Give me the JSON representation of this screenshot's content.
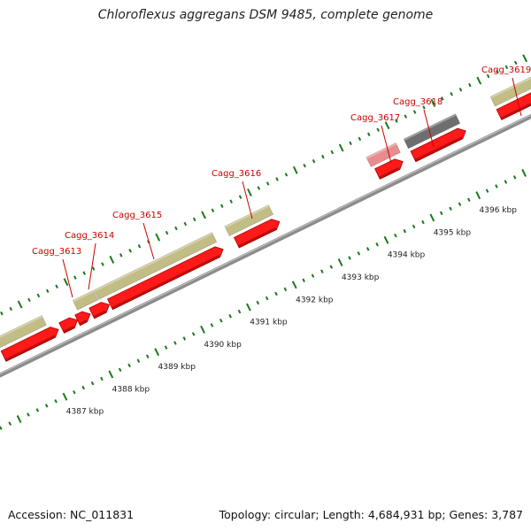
{
  "title": "Chloroflexus aggregans DSM 9485, complete genome",
  "footer": {
    "accession": "Accession: NC_011831",
    "topology": "Topology: circular; Length: 4,684,931 bp; Genes: 3,787"
  },
  "colors": {
    "backbone": "#8c8c8c",
    "cds": "#ff1a1a",
    "cds_dark": "#b00000",
    "gene": "#c2bd84",
    "gene_pink": "#e88d8d",
    "gene_gray": "#6e6e6e",
    "tick": "#1a7a1a",
    "label": "#cc0000"
  },
  "scale": {
    "unit": "kbp",
    "ticks": [
      {
        "pos": 4387,
        "label": "4387 kbp"
      },
      {
        "pos": 4388,
        "label": "4388 kbp"
      },
      {
        "pos": 4389,
        "label": "4389 kbp"
      },
      {
        "pos": 4390,
        "label": "4390 kbp"
      },
      {
        "pos": 4391,
        "label": "4391 kbp"
      },
      {
        "pos": 4392,
        "label": "4392 kbp"
      },
      {
        "pos": 4393,
        "label": "4393 kbp"
      },
      {
        "pos": 4394,
        "label": "4394 kbp"
      },
      {
        "pos": 4395,
        "label": "4395 kbp"
      },
      {
        "pos": 4396,
        "label": "4396 kbp"
      }
    ]
  },
  "gene_labels": [
    {
      "name": "Cagg_3613"
    },
    {
      "name": "Cagg_3614"
    },
    {
      "name": "Cagg_3615"
    },
    {
      "name": "Cagg_3616"
    },
    {
      "name": "Cagg_3617"
    },
    {
      "name": "Cagg_3618"
    },
    {
      "name": "Cagg_3619"
    }
  ]
}
